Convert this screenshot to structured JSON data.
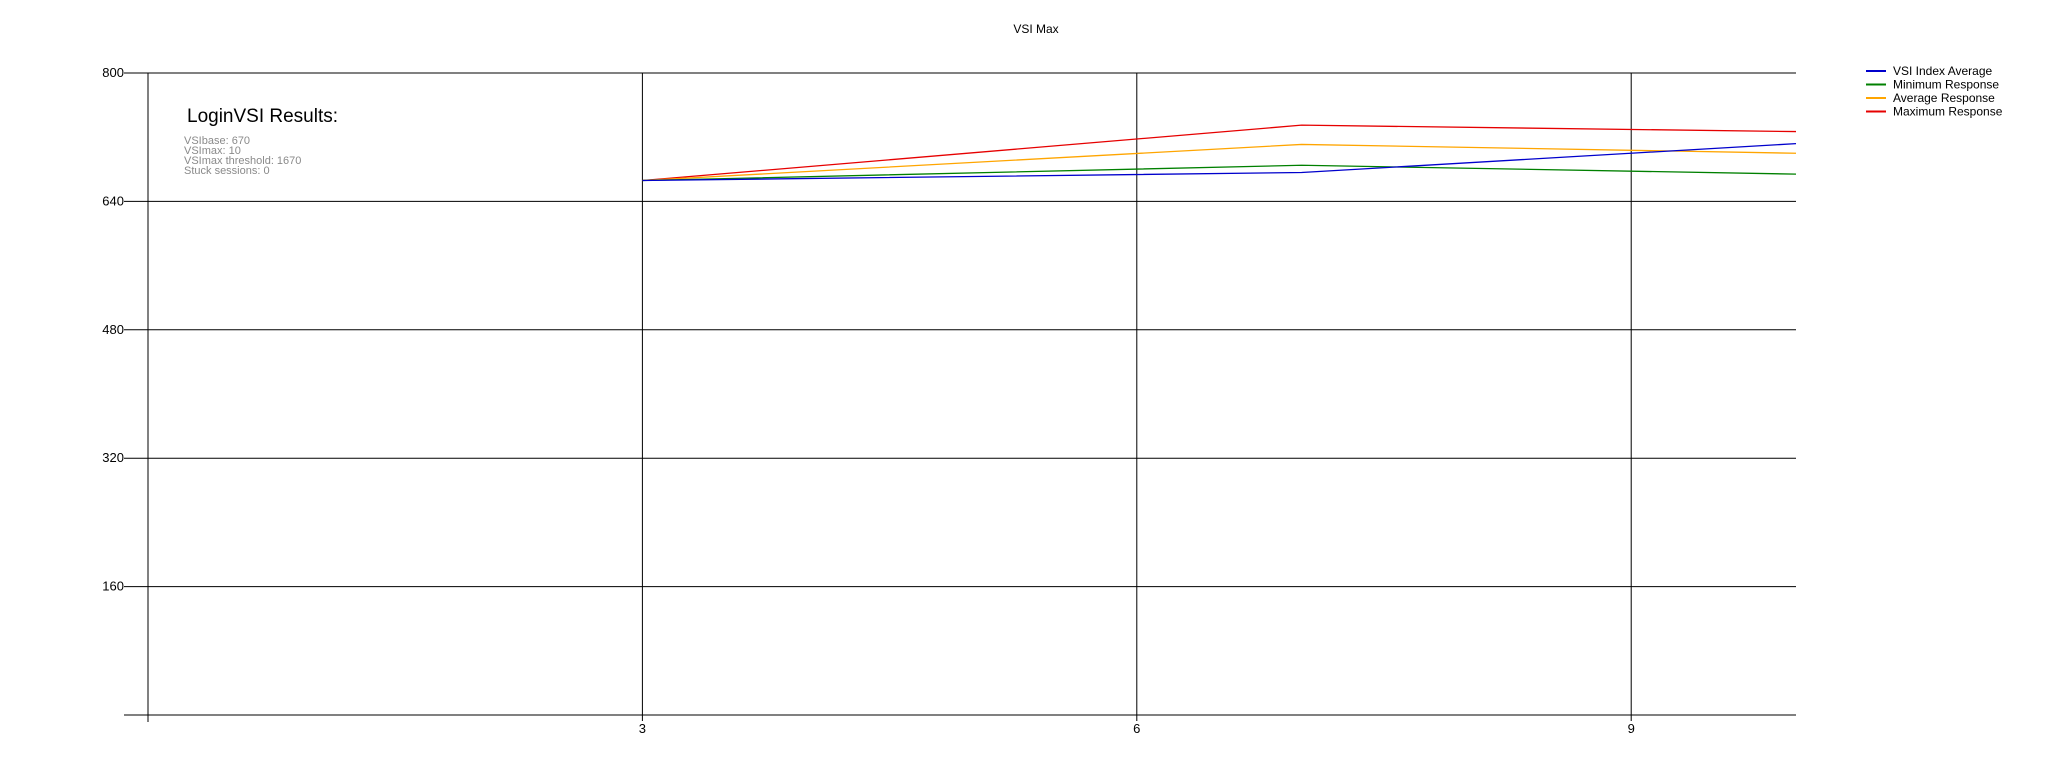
{
  "chart_data": {
    "type": "line",
    "title": "VSI Max",
    "xlabel": "",
    "ylabel": "",
    "xlim": [
      0,
      10
    ],
    "ylim": [
      0,
      800
    ],
    "x_ticks": [
      3,
      6,
      9
    ],
    "y_ticks": [
      160,
      320,
      480,
      640,
      800
    ],
    "grid": true,
    "legend_position": "top-right, outside plot",
    "x": [
      3,
      7,
      10
    ],
    "series": [
      {
        "name": "VSI Index Average",
        "color": "#0000cc",
        "values": [
          666,
          676,
          712
        ]
      },
      {
        "name": "Minimum Response",
        "color": "#008000",
        "values": [
          666,
          685,
          674
        ]
      },
      {
        "name": "Average Response",
        "color": "#ffa500",
        "values": [
          666,
          711,
          700
        ]
      },
      {
        "name": "Maximum Response",
        "color": "#e60000",
        "values": [
          666,
          735,
          727
        ]
      }
    ],
    "annotation": {
      "heading": "LoginVSI Results:",
      "lines": [
        "VSIbase: 670",
        "VSImax: 10",
        "VSImax threshold: 1670",
        "Stuck sessions: 0"
      ]
    }
  }
}
